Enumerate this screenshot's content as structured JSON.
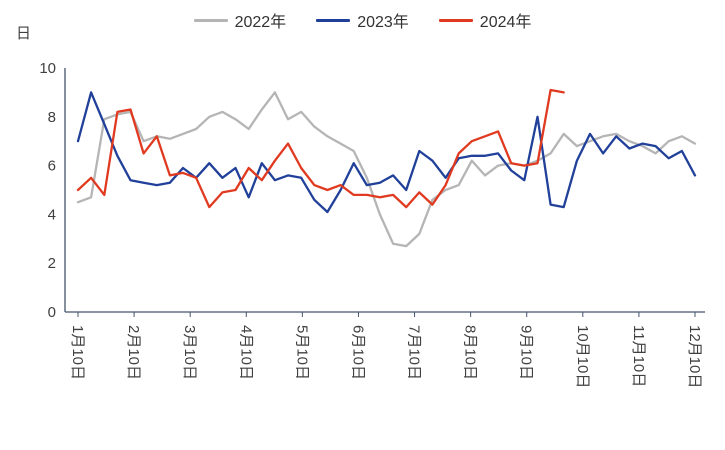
{
  "chart_data": {
    "type": "line",
    "title": "",
    "ylabel": "日",
    "xlabel": "",
    "ylim": [
      0,
      10
    ],
    "yticks": [
      0,
      2,
      4,
      6,
      8,
      10
    ],
    "grid": false,
    "legend_position": "top",
    "axis_color": "#44546a",
    "text_color": "#404040",
    "x_tick_labels": [
      "1月10日",
      "2月10日",
      "3月10日",
      "4月10日",
      "5月10日",
      "6月10日",
      "7月10日",
      "8月10日",
      "9月10日",
      "10月10日",
      "11月10日",
      "12月10日"
    ],
    "series": [
      {
        "name": "2022年",
        "color": "#b5b5b5",
        "values": [
          4.5,
          4.7,
          7.9,
          8.1,
          8.2,
          7.0,
          7.2,
          7.1,
          7.3,
          7.5,
          8.0,
          8.2,
          7.9,
          7.5,
          8.3,
          9.0,
          7.9,
          8.2,
          7.6,
          7.2,
          6.9,
          6.6,
          5.5,
          4.0,
          2.8,
          2.7,
          3.2,
          4.6,
          5.0,
          5.2,
          6.2,
          5.6,
          6.0,
          6.1,
          6.0,
          6.2,
          6.5,
          7.3,
          6.8,
          7.0,
          7.2,
          7.3,
          7.0,
          6.8,
          6.5,
          7.0,
          7.2,
          6.9
        ]
      },
      {
        "name": "2023年",
        "color": "#20409a",
        "values": [
          7.0,
          9.0,
          7.7,
          6.4,
          5.4,
          5.3,
          5.2,
          5.3,
          5.9,
          5.5,
          6.1,
          5.5,
          5.9,
          4.7,
          6.1,
          5.4,
          5.6,
          5.5,
          4.6,
          4.1,
          5.0,
          6.1,
          5.2,
          5.3,
          5.6,
          5.0,
          6.6,
          6.2,
          5.5,
          6.3,
          6.4,
          6.4,
          6.5,
          5.8,
          5.4,
          8.0,
          4.4,
          4.3,
          6.2,
          7.3,
          6.5,
          7.2,
          6.7,
          6.9,
          6.8,
          6.3,
          6.6,
          5.6
        ]
      },
      {
        "name": "2024年",
        "color": "#e03a20",
        "values": [
          5.0,
          5.5,
          4.8,
          8.2,
          8.3,
          6.5,
          7.2,
          5.6,
          5.7,
          5.5,
          4.3,
          4.9,
          5.0,
          5.9,
          5.4,
          6.2,
          6.9,
          5.9,
          5.2,
          5.0,
          5.2,
          4.8,
          4.8,
          4.7,
          4.8,
          4.3,
          4.9,
          4.4,
          5.2,
          6.5,
          7.0,
          7.2,
          7.4,
          6.1,
          6.0,
          6.1,
          9.1,
          9.0
        ]
      }
    ]
  }
}
